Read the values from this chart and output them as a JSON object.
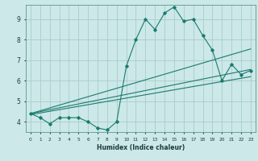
{
  "title": "",
  "xlabel": "Humidex (Indice chaleur)",
  "ylabel": "",
  "bg_color": "#cce8e8",
  "grid_color": "#aacccc",
  "line_color": "#1a7a6e",
  "xlim": [
    -0.5,
    23.5
  ],
  "ylim": [
    3.5,
    9.7
  ],
  "xticks": [
    0,
    1,
    2,
    3,
    4,
    5,
    6,
    7,
    8,
    9,
    10,
    11,
    12,
    13,
    14,
    15,
    16,
    17,
    18,
    19,
    20,
    21,
    22,
    23
  ],
  "yticks": [
    4,
    5,
    6,
    7,
    8,
    9
  ],
  "series1_x": [
    0,
    1,
    2,
    3,
    4,
    5,
    6,
    7,
    8,
    9,
    10,
    11,
    12,
    13,
    14,
    15,
    16,
    17,
    18,
    19,
    20,
    21,
    22,
    23
  ],
  "series1_y": [
    4.4,
    4.2,
    3.9,
    4.2,
    4.2,
    4.2,
    4.0,
    3.7,
    3.6,
    4.0,
    6.7,
    8.0,
    9.0,
    8.5,
    9.3,
    9.6,
    8.9,
    9.0,
    8.2,
    7.5,
    6.0,
    6.8,
    6.3,
    6.5
  ],
  "series2_x": [
    0,
    23
  ],
  "series2_y": [
    4.4,
    6.55
  ],
  "series3_x": [
    0,
    23
  ],
  "series3_y": [
    4.35,
    6.2
  ],
  "series4_x": [
    0,
    23
  ],
  "series4_y": [
    4.4,
    7.55
  ]
}
